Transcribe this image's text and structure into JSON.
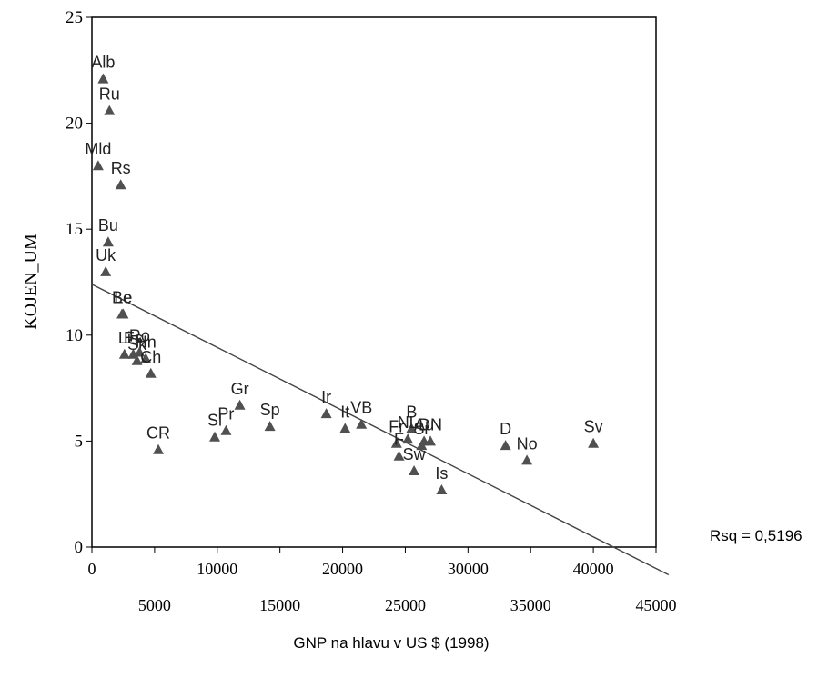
{
  "chart_data": {
    "type": "scatter",
    "title": "",
    "xlabel": "GNP na hlavu v US $ (1998)",
    "ylabel": "KOJEN_UM",
    "xlim": [
      0,
      45000
    ],
    "ylim": [
      0,
      25
    ],
    "x_ticks_upper": [
      "0",
      "10000",
      "20000",
      "30000",
      "40000"
    ],
    "x_ticks_lower": [
      "5000",
      "15000",
      "25000",
      "35000",
      "45000"
    ],
    "y_ticks": [
      "0",
      "5",
      "10",
      "15",
      "20",
      "25"
    ],
    "grid": false,
    "fit_line": {
      "intercept": 12.4,
      "slope": -0.000298
    },
    "rsq_label": "Rsq = 0,5196",
    "points": [
      {
        "label": "Alb",
        "x": 900,
        "y": 22.1
      },
      {
        "label": "Ru",
        "x": 1400,
        "y": 20.6
      },
      {
        "label": "Mld",
        "x": 500,
        "y": 18.0
      },
      {
        "label": "Rs",
        "x": 2300,
        "y": 17.1
      },
      {
        "label": "Bu",
        "x": 1300,
        "y": 14.4
      },
      {
        "label": "Uk",
        "x": 1100,
        "y": 13.0
      },
      {
        "label": "Be",
        "x": 2400,
        "y": 11.0
      },
      {
        "label": "Le",
        "x": 2500,
        "y": 11.0
      },
      {
        "label": "Li",
        "x": 2600,
        "y": 9.1
      },
      {
        "label": "Es",
        "x": 3300,
        "y": 9.1
      },
      {
        "label": "Sk",
        "x": 3600,
        "y": 8.8
      },
      {
        "label": "Ro",
        "x": 3800,
        "y": 9.2
      },
      {
        "label": "Hn",
        "x": 4300,
        "y": 8.9
      },
      {
        "label": "Ch",
        "x": 4700,
        "y": 8.2
      },
      {
        "label": "CR",
        "x": 5300,
        "y": 4.6
      },
      {
        "label": "Sl",
        "x": 9800,
        "y": 5.2
      },
      {
        "label": "Pr",
        "x": 10700,
        "y": 5.5
      },
      {
        "label": "Gr",
        "x": 11800,
        "y": 6.7
      },
      {
        "label": "Sp",
        "x": 14200,
        "y": 5.7
      },
      {
        "label": "Ir",
        "x": 18700,
        "y": 6.3
      },
      {
        "label": "It",
        "x": 20200,
        "y": 5.6
      },
      {
        "label": "VB",
        "x": 21500,
        "y": 5.8
      },
      {
        "label": "Fr",
        "x": 24300,
        "y": 4.9
      },
      {
        "label": "F",
        "x": 24500,
        "y": 4.3
      },
      {
        "label": "B",
        "x": 25500,
        "y": 5.6
      },
      {
        "label": "Sw",
        "x": 25700,
        "y": 3.6
      },
      {
        "label": "NL",
        "x": 25200,
        "y": 5.1
      },
      {
        "label": "Au",
        "x": 26500,
        "y": 5.0
      },
      {
        "label": "Sr",
        "x": 26300,
        "y": 4.8
      },
      {
        "label": "DN",
        "x": 27000,
        "y": 5.0
      },
      {
        "label": "Is",
        "x": 27900,
        "y": 2.7
      },
      {
        "label": "D",
        "x": 33000,
        "y": 4.8
      },
      {
        "label": "No",
        "x": 34700,
        "y": 4.1
      },
      {
        "label": "Sv",
        "x": 40000,
        "y": 4.9
      }
    ]
  }
}
